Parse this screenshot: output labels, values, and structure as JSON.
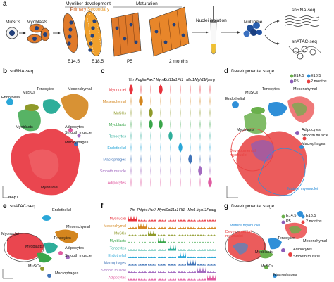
{
  "panels": {
    "a": {
      "letter": "a",
      "stages": {
        "muscs": "MuSCs",
        "myoblasts": "Myoblasts",
        "myofiber_dev": "Myofiber development",
        "primary": "Primary",
        "secondary": "Secondary",
        "maturation": "Maturation",
        "e14": "E14.5",
        "e18": "E18.5",
        "p5": "P5",
        "two_months": "2 months"
      },
      "nuclei_isolation": "Nuclei isolation",
      "multiome": "Multiome",
      "snrna_seq": "snRNA-seq",
      "snatac_seq": "snATAC-seq"
    },
    "b": {
      "letter": "b",
      "title": "snRNA-seq",
      "labels": {
        "muscs": "MuSCs",
        "tenocytes": "Tenocytes",
        "mesenchymal": "Mesenchymal",
        "endothelial": "Endothelial",
        "myoblasts": "Myoblasts",
        "adipocytes": "Adipocytes",
        "smooth_muscle": "Smooth muscle",
        "macrophages": "Macrophages",
        "myonuclei": "Myonuclei"
      },
      "axis1": "Umap1",
      "axis2": "Umap2"
    },
    "c": {
      "letter": "c",
      "genes": [
        "Ttn",
        "Pdgfra",
        "Pax7",
        "Mymk",
        "Col11a1",
        "Flt1",
        "Mrc1",
        "Myh11",
        "Pparg"
      ],
      "rows": [
        "Myonuclei",
        "Mesenchymal",
        "MuSCs",
        "Myoblasts",
        "Tenocytes",
        "Endothelial",
        "Macrophages",
        "Smooth muscle",
        "Adipocytes"
      ],
      "colors": [
        "#e8323c",
        "#d4861e",
        "#8f9a2a",
        "#3aa64a",
        "#2eae9a",
        "#2aa7d8",
        "#3f73b8",
        "#a36bc0",
        "#e05aa0"
      ]
    },
    "d": {
      "letter": "d",
      "title": "Developmental stage",
      "legend": [
        "E14.5",
        "E18.5",
        "P5",
        "2 months"
      ],
      "legend_colors": [
        "#6ab04c",
        "#2f8fd8",
        "#8c5bb8",
        "#e84040"
      ],
      "labels": {
        "muscs": "MuSCs",
        "tenocytes": "Tenocytes",
        "mesenchymal": "Mesenchymal",
        "endothelial": "Endothelial",
        "myoblasts": "Myoblasts",
        "adipocytes": "Adipocytes",
        "smooth_muscle": "Smooth muscle",
        "macrophages": "Macrophages",
        "developmental": "Developmental\nmyonuclei",
        "mature": "Mature myonuclei"
      }
    },
    "e": {
      "letter": "e",
      "title": "snATAC-seq",
      "labels": {
        "endothelial": "Endothelial",
        "mesenchymal": "Mesenchymal",
        "myonuclei": "Myonuclei",
        "tenocytes": "Tenocytes",
        "myoblasts": "Myoblasts",
        "adipocytes": "Adipocytes",
        "smooth_muscle": "Smooth muscle",
        "muscs": "MuSCs",
        "macrophages": "Macrophages"
      },
      "axis1": "Umap1",
      "axis2": "Umap2"
    },
    "f": {
      "letter": "f",
      "genes": [
        "Ttn",
        "Pdgfra",
        "Pax7",
        "Mymk",
        "Col11a1",
        "Flt1",
        "Mrc1",
        "Myh11",
        "Pparg"
      ],
      "rows": [
        "Myonuclei",
        "Mesenchymal",
        "MuSCs",
        "Myoblasts",
        "Tenocytes",
        "Endothelial",
        "Macrophages",
        "Smooth muscle",
        "Adipocytes"
      ]
    },
    "g": {
      "letter": "g",
      "title": "Developmental stage",
      "legend": [
        "E14.5",
        "E18.5",
        "P5",
        "2 months"
      ],
      "labels": {
        "mature": "Mature myonuclei",
        "developmental": "Developmental\nmyonuclei",
        "tenocytes": "Tenocytes",
        "mesenchymal": "Mesenchymal",
        "myoblasts": "Myoblasts",
        "adipocytes": "Adipocytes",
        "smooth_muscle": "Smooth muscle",
        "muscs": "MuSCs",
        "macrophages": "Macrophages",
        "endothelial": "Endothelial"
      }
    }
  }
}
